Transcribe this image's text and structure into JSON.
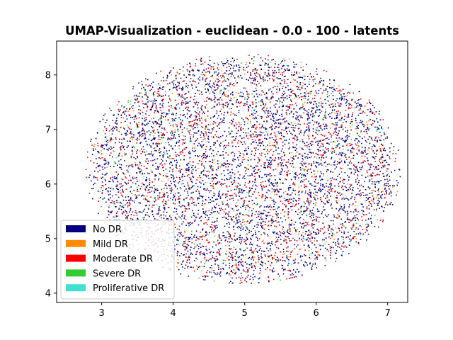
{
  "chart_data": {
    "type": "scatter",
    "title": "UMAP-Visualization - euclidean - 0.0 - 100 - latents",
    "xlabel": "",
    "ylabel": "",
    "xlim": [
      2.37,
      7.28
    ],
    "ylim": [
      3.83,
      8.62
    ],
    "x_ticks": [
      "3",
      "4",
      "5",
      "6",
      "7"
    ],
    "y_ticks": [
      "4",
      "5",
      "6",
      "7",
      "8"
    ],
    "grid": false,
    "legend_position": "lower-left",
    "series": [
      {
        "name": "No DR",
        "color": "#000080",
        "share": 0.62
      },
      {
        "name": "Mild DR",
        "color": "#ff8c00",
        "share": 0.06
      },
      {
        "name": "Moderate DR",
        "color": "#ff0000",
        "share": 0.26
      },
      {
        "name": "Severe DR",
        "color": "#32cd32",
        "share": 0.03
      },
      {
        "name": "Proliferative DR",
        "color": "#40e0d0",
        "share": 0.03
      }
    ],
    "cloud": {
      "center_x": 4.98,
      "center_y": 6.28,
      "radius_x": 2.2,
      "radius_y": 2.1,
      "point_count": 6500
    }
  }
}
